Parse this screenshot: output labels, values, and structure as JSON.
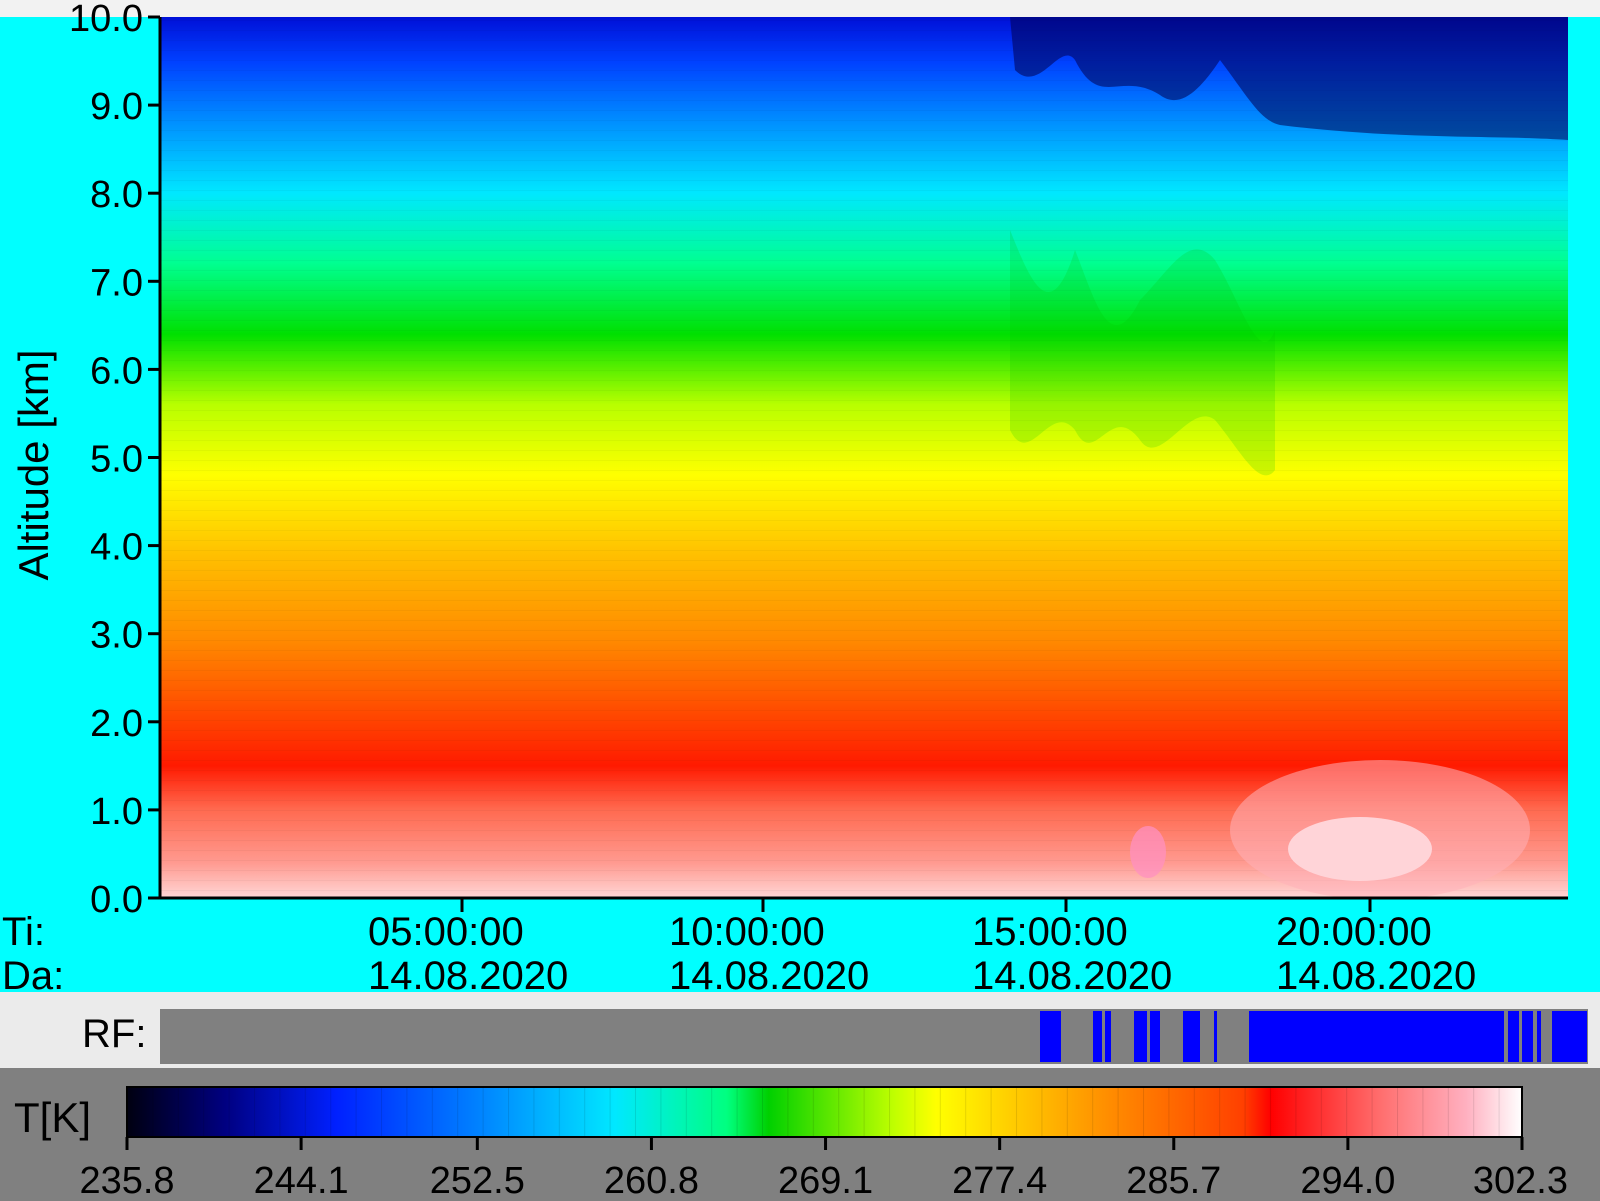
{
  "chart_data": {
    "type": "heatmap",
    "title": "",
    "ylabel": "Altitude [km]",
    "ylim": [
      0,
      10
    ],
    "y_ticks": [
      "10.0",
      "9.0",
      "8.0",
      "7.0",
      "6.0",
      "5.0",
      "4.0",
      "3.0",
      "2.0",
      "1.0",
      "0.0"
    ],
    "x_row_labels": {
      "time": "Ti:",
      "date": "Da:"
    },
    "x_ticks": [
      {
        "time": "05:00:00",
        "date": "14.08.2020"
      },
      {
        "time": "10:00:00",
        "date": "14.08.2020"
      },
      {
        "time": "15:00:00",
        "date": "14.08.2020"
      },
      {
        "time": "20:00:00",
        "date": "14.08.2020"
      }
    ],
    "rf_label": "RF:",
    "colorbar": {
      "label": "T[K]",
      "min": 235.8,
      "max": 302.3,
      "ticks": [
        "235.8",
        "244.1",
        "252.5",
        "260.8",
        "269.1",
        "277.4",
        "285.7",
        "294.0",
        "302.3"
      ]
    },
    "colors": {
      "panel_background": "#00ffff",
      "rf_background": "#808080",
      "rf_flag": "#0000ff",
      "colorbar_background": "#808080"
    }
  }
}
